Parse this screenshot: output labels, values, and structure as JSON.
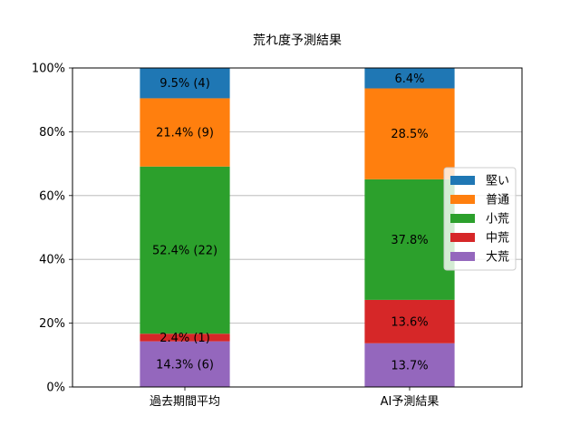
{
  "chart_data": {
    "type": "bar",
    "stacked": true,
    "title": "荒れ度予測結果",
    "xlabel": "",
    "ylabel": "",
    "ylim": [
      0,
      1
    ],
    "yticks": [
      0,
      0.2,
      0.4,
      0.6,
      0.8,
      1.0
    ],
    "ytick_labels": [
      "0%",
      "20%",
      "40%",
      "60%",
      "80%",
      "100%"
    ],
    "grid": "horizontal",
    "legend_position": "right",
    "categories": [
      "過去期間平均",
      "AI予測結果"
    ],
    "series": [
      {
        "name": "大荒",
        "color": "#9467bd",
        "values": [
          0.143,
          0.137
        ],
        "labels": [
          "14.3% (6)",
          "13.7%"
        ]
      },
      {
        "name": "中荒",
        "color": "#d62728",
        "values": [
          0.024,
          0.136
        ],
        "labels": [
          "2.4% (1)",
          "13.6%"
        ]
      },
      {
        "name": "小荒",
        "color": "#2ca02c",
        "values": [
          0.524,
          0.378
        ],
        "labels": [
          "52.4% (22)",
          "37.8%"
        ]
      },
      {
        "name": "普通",
        "color": "#ff7f0e",
        "values": [
          0.214,
          0.285
        ],
        "labels": [
          "21.4% (9)",
          "28.5%"
        ]
      },
      {
        "name": "堅い",
        "color": "#1f77b4",
        "values": [
          0.095,
          0.064
        ],
        "labels": [
          "9.5% (4)",
          "6.4%"
        ]
      }
    ],
    "legend_order": [
      "堅い",
      "普通",
      "小荒",
      "中荒",
      "大荒"
    ]
  }
}
